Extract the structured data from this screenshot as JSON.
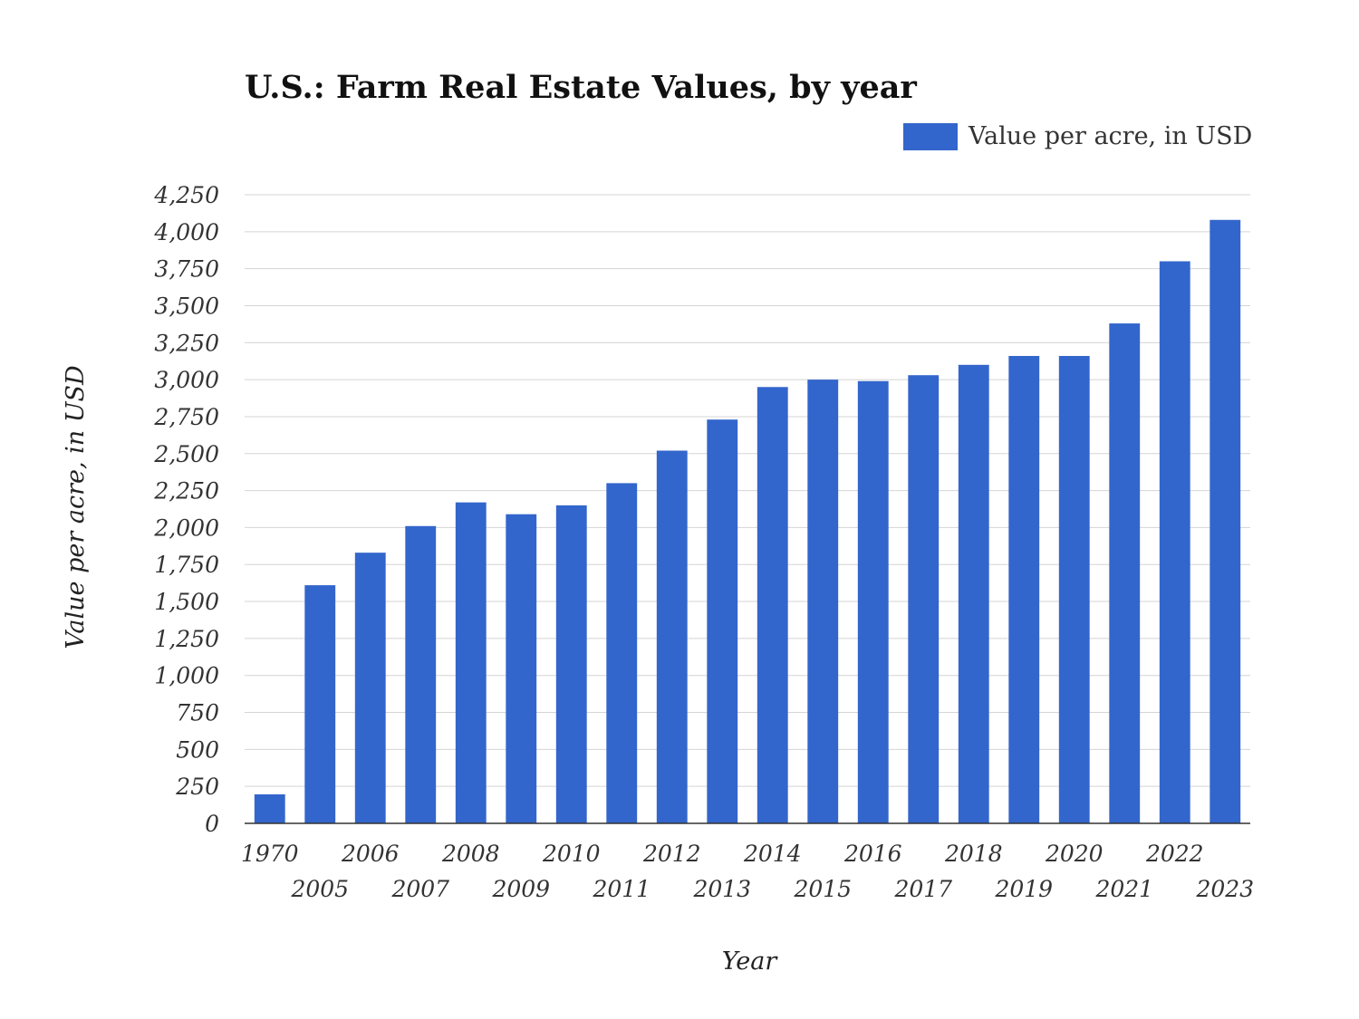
{
  "chart_data": {
    "type": "bar",
    "title": "U.S.: Farm Real Estate Values, by year",
    "xlabel": "Year",
    "ylabel": "Value per acre, in USD",
    "legend_position": "top-right",
    "grid": true,
    "ylim": [
      0,
      4250
    ],
    "yticks": [
      "0",
      "250",
      "500",
      "750",
      "1,000",
      "1,250",
      "1,500",
      "1,750",
      "2,000",
      "2,250",
      "2,500",
      "2,750",
      "3,000",
      "3,250",
      "3,500",
      "3,750",
      "4,000",
      "4,250"
    ],
    "categories": [
      "1970",
      "2005",
      "2006",
      "2007",
      "2008",
      "2009",
      "2010",
      "2011",
      "2012",
      "2013",
      "2014",
      "2015",
      "2016",
      "2017",
      "2018",
      "2019",
      "2020",
      "2021",
      "2022",
      "2023"
    ],
    "series": [
      {
        "name": "Value per acre, in USD",
        "color": "#3366cc",
        "values": [
          196,
          1610,
          1830,
          2010,
          2170,
          2090,
          2150,
          2300,
          2520,
          2730,
          2950,
          3000,
          2990,
          3030,
          3100,
          3160,
          3160,
          3380,
          3800,
          4080
        ]
      }
    ]
  }
}
